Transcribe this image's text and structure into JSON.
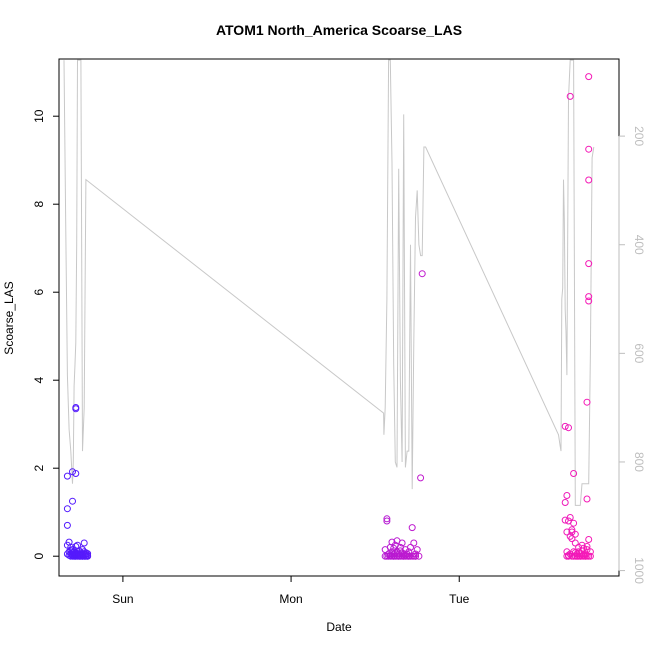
{
  "chart_data": {
    "type": "scatter",
    "title": "ATOM1 North_America Scoarse_LAS",
    "xlabel": "Date",
    "ylabel": "Scoarse_LAS",
    "x_tick_labels": [
      "Sun",
      "Mon",
      "Tue"
    ],
    "x_ticks_day_offset": [
      0,
      1,
      2
    ],
    "xlim_days": [
      -0.38,
      2.95
    ],
    "ylim": [
      -0.45,
      11.3
    ],
    "y_ticks": [
      0,
      2,
      4,
      6,
      8,
      10
    ],
    "y2_ticks": [
      200,
      400,
      600,
      800,
      1000
    ],
    "y2lim_reversed": [
      1010,
      58
    ],
    "colors": {
      "early": "#4f1aff",
      "late": "#ff1ab3",
      "line": "#c8c8c8",
      "axis": "#000000",
      "right_axis": "#bebebe"
    },
    "series": [
      {
        "kind": "points",
        "x_days": [
          -0.33,
          -0.33,
          -0.33,
          -0.33,
          -0.33,
          -0.32,
          -0.32,
          -0.32,
          -0.31,
          -0.31,
          -0.31,
          -0.31,
          -0.3,
          -0.3,
          -0.3,
          -0.3,
          -0.3,
          -0.29,
          -0.29,
          -0.29,
          -0.29,
          -0.29,
          -0.28,
          -0.28,
          -0.28,
          -0.28,
          -0.28,
          -0.27,
          -0.27,
          -0.27,
          -0.27,
          -0.26,
          -0.26,
          -0.26,
          -0.26,
          -0.25,
          -0.25,
          -0.25,
          -0.24,
          -0.24,
          -0.24,
          -0.24,
          -0.23,
          -0.23,
          -0.23,
          -0.23,
          -0.23,
          -0.22,
          -0.22,
          -0.22,
          -0.22,
          -0.21,
          -0.21,
          -0.21,
          -0.21,
          -0.3,
          -0.3,
          -0.28,
          -0.28,
          -0.28,
          -0.27,
          -0.27,
          -0.25,
          -0.23
        ],
        "y": [
          1.82,
          1.08,
          0.7,
          0.25,
          0.05,
          0.32,
          0.1,
          0.02,
          0.2,
          0.05,
          0.0,
          0.12,
          0.02,
          0.08,
          0.0,
          0.15,
          0.03,
          0.05,
          0.0,
          0.1,
          0.02,
          0.0,
          0.22,
          0.05,
          0.0,
          0.08,
          0.0,
          0.03,
          0.1,
          0.0,
          0.05,
          0.0,
          0.02,
          0.12,
          0.0,
          0.05,
          0.0,
          0.08,
          0.0,
          0.02,
          0.15,
          0.0,
          0.0,
          0.05,
          0.1,
          0.0,
          0.02,
          0.0,
          0.08,
          0.0,
          0.04,
          0.0,
          0.02,
          0.0,
          0.06,
          1.92,
          1.25,
          1.88,
          3.35,
          3.38,
          0.25,
          0.04,
          0.0,
          0.3
        ]
      },
      {
        "kind": "points",
        "x_days": [
          1.56,
          1.56,
          1.57,
          1.57,
          1.57,
          1.58,
          1.58,
          1.59,
          1.59,
          1.59,
          1.6,
          1.6,
          1.6,
          1.61,
          1.61,
          1.61,
          1.61,
          1.62,
          1.62,
          1.62,
          1.63,
          1.63,
          1.63,
          1.64,
          1.64,
          1.64,
          1.65,
          1.65,
          1.65,
          1.66,
          1.66,
          1.66,
          1.67,
          1.67,
          1.67,
          1.68,
          1.68,
          1.68,
          1.69,
          1.69,
          1.7,
          1.7,
          1.7,
          1.71,
          1.71,
          1.72,
          1.72,
          1.73,
          1.73,
          1.74,
          1.74,
          1.74,
          1.75,
          1.76,
          1.77,
          1.78
        ],
        "y": [
          0.0,
          0.15,
          0.0,
          0.8,
          0.85,
          0.05,
          0.0,
          0.0,
          0.2,
          0.02,
          0.0,
          0.1,
          0.32,
          0.0,
          0.05,
          0.18,
          0.0,
          0.08,
          0.0,
          0.25,
          0.0,
          0.35,
          0.1,
          0.0,
          0.05,
          0.0,
          0.12,
          0.0,
          0.2,
          0.0,
          0.08,
          0.3,
          0.0,
          0.05,
          0.0,
          0.15,
          0.0,
          0.02,
          0.05,
          0.0,
          0.0,
          0.1,
          0.0,
          0.0,
          0.2,
          0.0,
          0.65,
          0.0,
          0.3,
          0.0,
          0.05,
          0.0,
          0.15,
          0.0,
          1.78,
          6.42
        ]
      },
      {
        "kind": "points",
        "x_days": [
          2.63,
          2.63,
          2.63,
          2.64,
          2.64,
          2.64,
          2.64,
          2.65,
          2.65,
          2.65,
          2.66,
          2.66,
          2.66,
          2.67,
          2.67,
          2.67,
          2.67,
          2.68,
          2.68,
          2.68,
          2.69,
          2.69,
          2.69,
          2.69,
          2.7,
          2.7,
          2.7,
          2.71,
          2.71,
          2.71,
          2.72,
          2.72,
          2.72,
          2.73,
          2.73,
          2.73,
          2.74,
          2.74,
          2.74,
          2.75,
          2.75,
          2.75,
          2.76,
          2.76,
          2.76,
          2.76,
          2.76,
          2.77,
          2.77,
          2.77,
          2.77,
          2.77,
          2.77,
          2.77,
          2.77,
          2.78,
          2.65,
          2.66,
          2.68,
          2.78
        ],
        "y": [
          2.95,
          1.22,
          0.82,
          1.38,
          0.55,
          0.1,
          0.0,
          0.8,
          0.02,
          0.0,
          0.88,
          0.45,
          0.05,
          0.55,
          0.0,
          0.4,
          0.6,
          0.1,
          0.0,
          0.75,
          0.5,
          0.0,
          0.08,
          0.3,
          0.0,
          0.05,
          0.0,
          0.1,
          0.0,
          0.2,
          0.0,
          0.05,
          0.0,
          0.12,
          0.0,
          0.25,
          0.0,
          0.02,
          0.18,
          0.0,
          0.05,
          0.0,
          0.15,
          0.0,
          0.22,
          1.3,
          3.5,
          5.8,
          5.9,
          6.65,
          8.55,
          9.25,
          10.9,
          0.38,
          0.0,
          0.1,
          2.92,
          10.45,
          1.88,
          0.0
        ]
      },
      {
        "kind": "line",
        "x_days": [
          -0.35,
          -0.34,
          -0.33,
          -0.32,
          -0.31,
          -0.3,
          -0.295,
          -0.29,
          -0.285,
          -0.28,
          -0.275,
          -0.27,
          -0.26,
          -0.25,
          -0.24,
          -0.23,
          -0.22,
          1.55,
          1.552,
          1.56,
          1.57,
          1.58,
          1.59,
          1.6,
          1.61,
          1.62,
          1.63,
          1.64,
          1.65,
          1.66,
          1.67,
          1.68,
          1.69,
          1.7,
          1.71,
          1.72,
          1.73,
          1.74,
          1.75,
          1.76,
          1.77,
          1.78,
          1.79,
          1.8,
          2.59,
          2.6,
          2.605,
          2.61,
          2.615,
          2.62,
          2.625,
          2.63,
          2.635,
          2.64,
          2.65,
          2.66,
          2.67,
          2.68,
          2.69,
          2.7,
          2.71,
          2.72,
          2.73,
          2.74,
          2.75,
          2.76,
          2.77,
          2.78,
          2.79,
          2.8
        ],
        "y2": [
          60,
          360,
          640,
          740,
          780,
          840,
          800,
          660,
          620,
          580,
          400,
          60,
          60,
          60,
          780,
          700,
          280,
          710,
          750,
          700,
          500,
          60,
          60,
          250,
          620,
          800,
          810,
          260,
          650,
          800,
          160,
          810,
          780,
          780,
          400,
          850,
          580,
          350,
          300,
          400,
          420,
          420,
          220,
          220,
          750,
          770,
          780,
          500,
          480,
          280,
          350,
          520,
          560,
          640,
          130,
          60,
          60,
          60,
          880,
          880,
          880,
          880,
          840,
          840,
          840,
          840,
          840,
          600,
          240,
          220
        ]
      }
    ]
  }
}
